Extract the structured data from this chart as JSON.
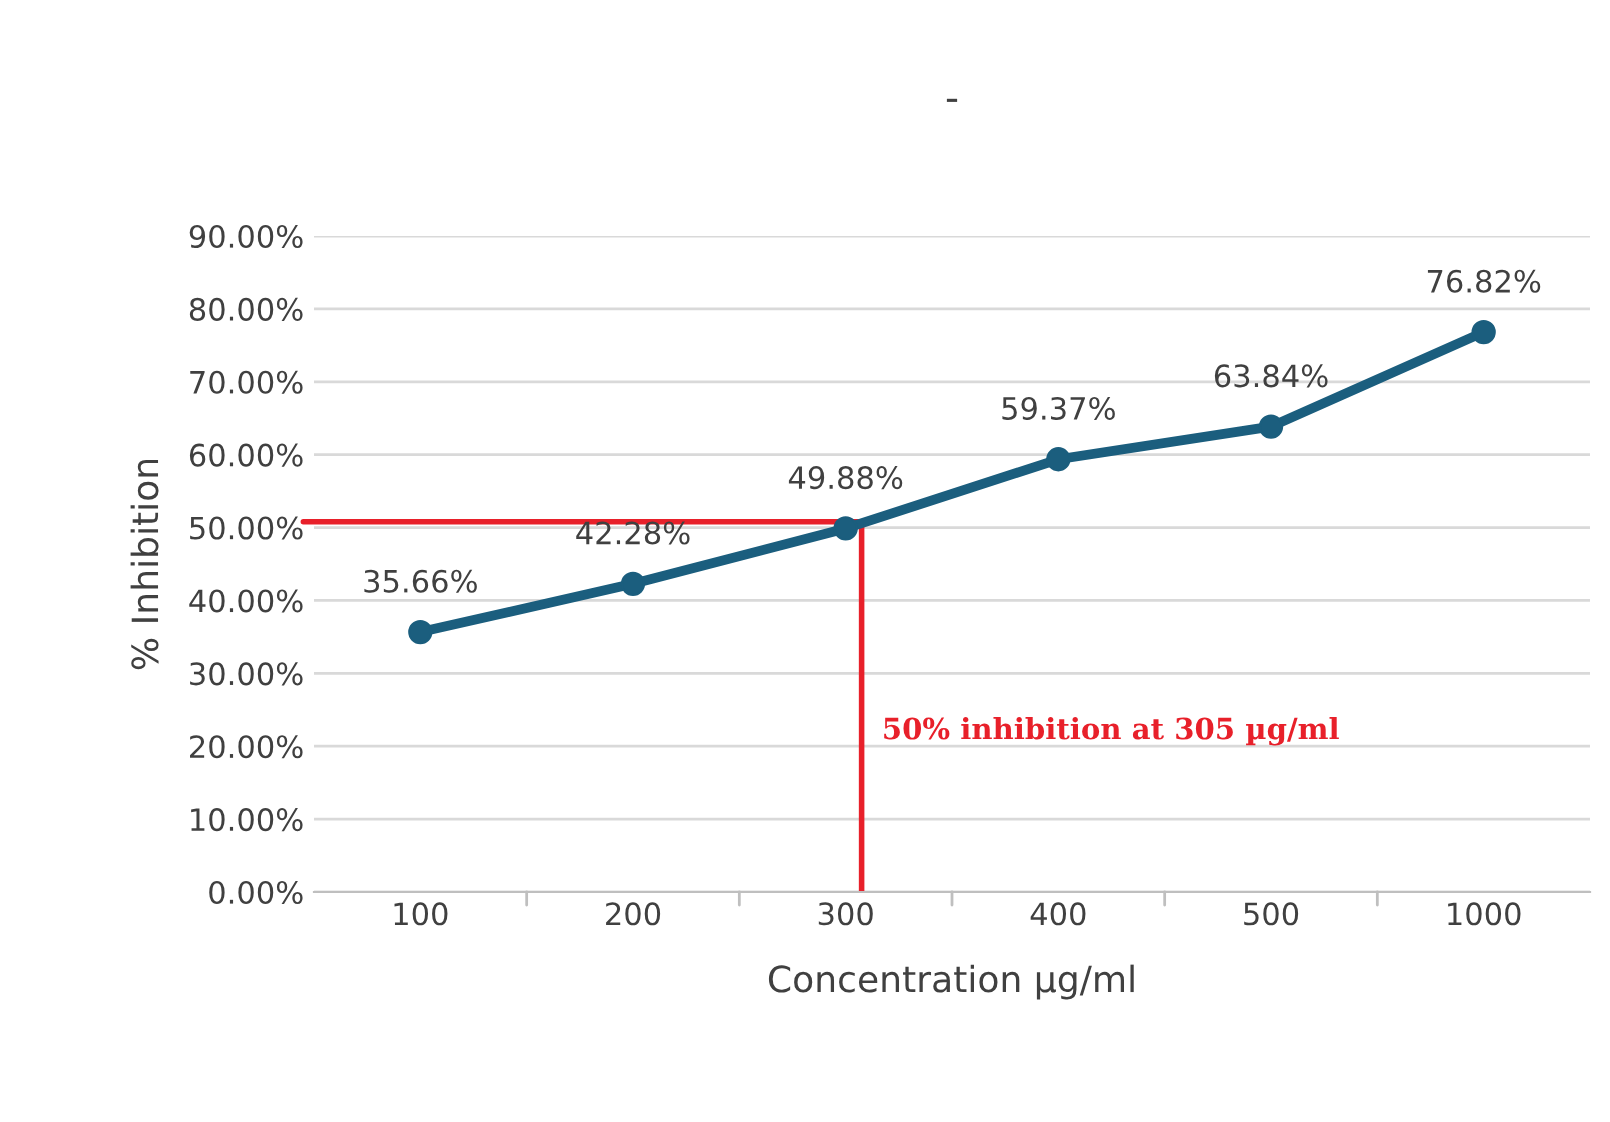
{
  "chart_data": {
    "type": "line",
    "title": "-",
    "xlabel": "Concentration µg/ml",
    "ylabel": "% Inhibition",
    "categories": [
      "100",
      "200",
      "300",
      "400",
      "500",
      "1000"
    ],
    "series": [
      {
        "color": "#1b5e7e",
        "values": [
          35.66,
          42.28,
          49.88,
          59.37,
          63.84,
          76.82
        ],
        "value_labels": [
          "35.66%",
          "42.28%",
          "49.88%",
          "59.37%",
          "63.84%",
          "76.82%"
        ]
      }
    ],
    "ylim": [
      0,
      90
    ],
    "yticks": [
      {
        "value": 0,
        "label": "0.00%"
      },
      {
        "value": 10,
        "label": "10.00%"
      },
      {
        "value": 20,
        "label": "20.00%"
      },
      {
        "value": 30,
        "label": "30.00%"
      },
      {
        "value": 40,
        "label": "40.00%"
      },
      {
        "value": 50,
        "label": "50.00%"
      },
      {
        "value": 60,
        "label": "60.00%"
      },
      {
        "value": 70,
        "label": "70.00%"
      },
      {
        "value": 80,
        "label": "80.00%"
      },
      {
        "value": 90,
        "label": "90.00%"
      }
    ],
    "grid": "y",
    "marker": "circle",
    "line_style": "solid",
    "ref_lines": [
      {
        "axis": "y",
        "value": 50.8,
        "color": "#e8202a"
      },
      {
        "axis": "x",
        "value": "300",
        "color": "#e8202a"
      }
    ],
    "annotations": [
      "50% inhibition at 305 µg/ml"
    ]
  }
}
